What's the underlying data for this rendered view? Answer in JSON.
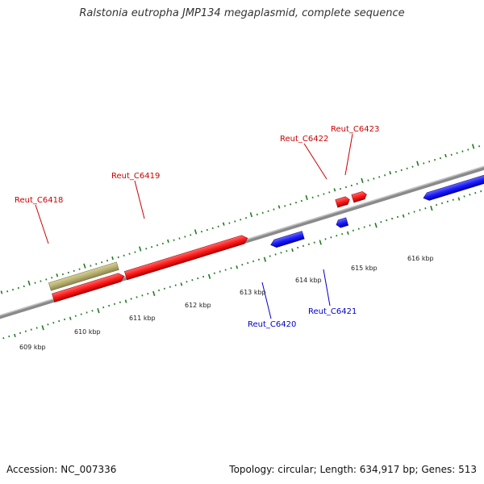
{
  "title": "Ralstonia eutropha JMP134 megaplasmid, complete sequence",
  "footer": {
    "accession": "Accession: NC_007336",
    "topology": "Topology: circular; Length: 634,917 bp; Genes: 513"
  },
  "colors": {
    "forward_gene": "#ff1a1a",
    "reverse_gene": "#1a1aff",
    "other_feature": "#b8b070",
    "tick": "#1f7a1f",
    "backbone": "#8a8a8a",
    "forward_label": "#cc0000",
    "reverse_label": "#0000cc"
  },
  "scale": {
    "tick_labels": [
      "609 kbp",
      "610 kbp",
      "611 kbp",
      "612 kbp",
      "613 kbp",
      "614 kbp",
      "615 kbp",
      "616 kbp"
    ]
  },
  "genes": [
    {
      "label": "Reut_C6418",
      "strand": "forward"
    },
    {
      "label": "Reut_C6419",
      "strand": "forward"
    },
    {
      "label": "Reut_C6420",
      "strand": "reverse"
    },
    {
      "label": "Reut_C6421",
      "strand": "reverse"
    },
    {
      "label": "Reut_C6422",
      "strand": "forward"
    },
    {
      "label": "Reut_C6423",
      "strand": "forward"
    }
  ]
}
